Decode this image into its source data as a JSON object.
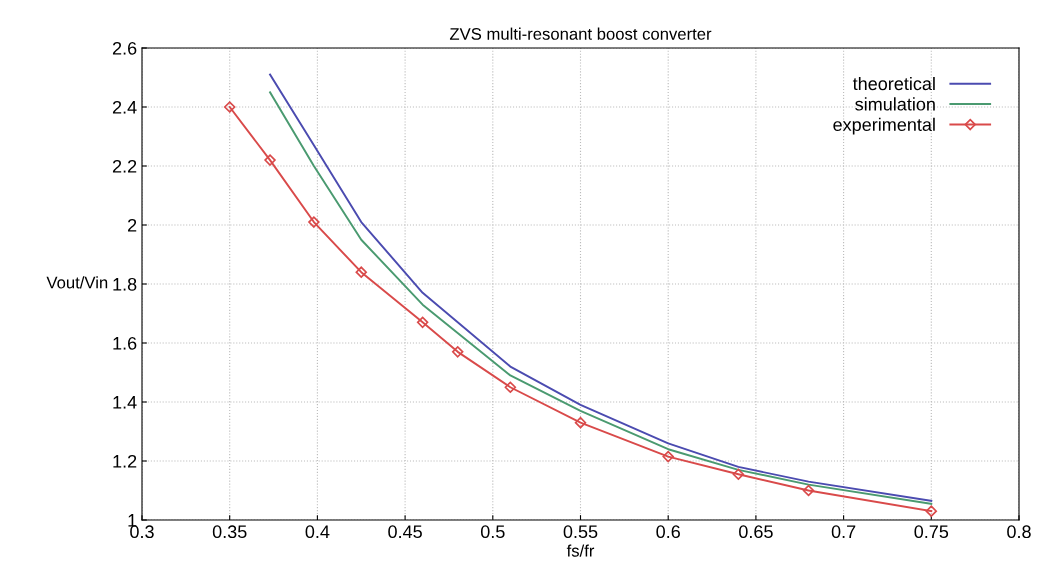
{
  "chart_data": {
    "type": "line",
    "title": "ZVS multi-resonant boost converter",
    "xlabel": "fs/fr",
    "ylabel": "Vout/Vin",
    "xlim": [
      0.3,
      0.8
    ],
    "xticks": [
      0.3,
      0.35,
      0.4,
      0.45,
      0.5,
      0.55,
      0.6,
      0.65,
      0.7,
      0.75,
      0.8
    ],
    "ylim": [
      1,
      2.6
    ],
    "yticks": [
      1,
      1.2,
      1.4,
      1.6,
      1.8,
      2,
      2.2,
      2.4,
      2.6
    ],
    "grid": true,
    "legend": "top right",
    "series": [
      {
        "name": "theoretical",
        "color": "#4b4bb0",
        "marker": "none",
        "x": [
          0.373,
          0.398,
          0.425,
          0.46,
          0.51,
          0.55,
          0.6,
          0.64,
          0.68,
          0.75
        ],
        "values": [
          2.51,
          2.27,
          2.01,
          1.77,
          1.52,
          1.39,
          1.26,
          1.18,
          1.13,
          1.065
        ]
      },
      {
        "name": "simulation",
        "color": "#4a9a70",
        "marker": "none",
        "x": [
          0.373,
          0.398,
          0.425,
          0.46,
          0.51,
          0.55,
          0.6,
          0.64,
          0.68,
          0.75
        ],
        "values": [
          2.45,
          2.2,
          1.95,
          1.73,
          1.49,
          1.37,
          1.24,
          1.17,
          1.12,
          1.055
        ]
      },
      {
        "name": "experimental",
        "color": "#d94a4a",
        "marker": "diamond",
        "x": [
          0.35,
          0.373,
          0.398,
          0.425,
          0.46,
          0.48,
          0.51,
          0.55,
          0.6,
          0.64,
          0.68,
          0.75
        ],
        "values": [
          2.4,
          2.22,
          2.01,
          1.84,
          1.67,
          1.57,
          1.45,
          1.33,
          1.215,
          1.155,
          1.1,
          1.03
        ]
      }
    ]
  }
}
